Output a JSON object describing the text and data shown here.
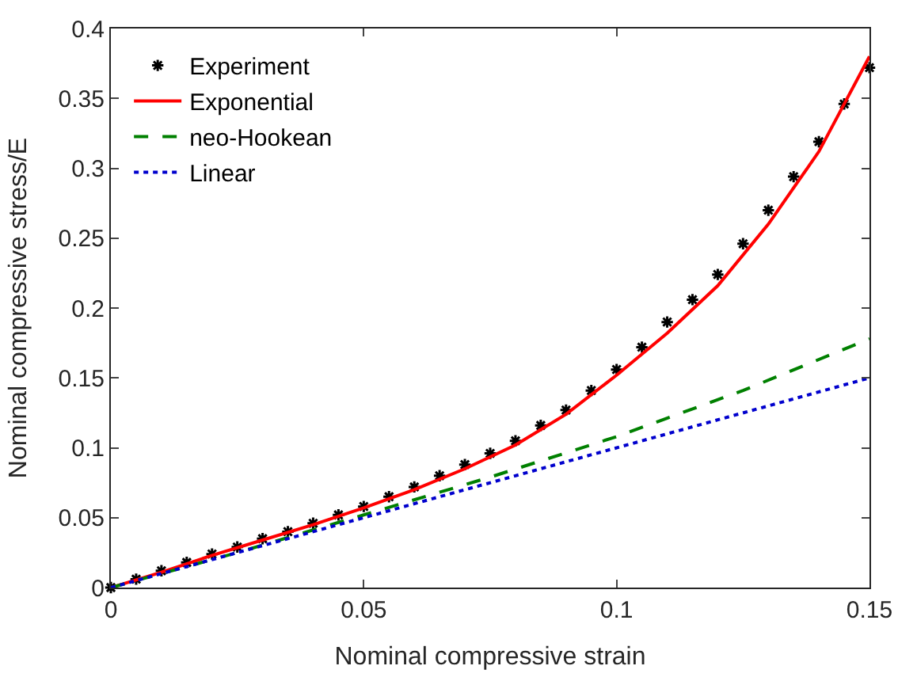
{
  "chart_data": {
    "type": "line",
    "xlabel": "Nominal compressive strain",
    "ylabel": "Nominal compressive stress/E",
    "xlim": [
      0,
      0.15
    ],
    "ylim": [
      0,
      0.4
    ],
    "xticks": [
      0,
      0.05,
      0.1,
      0.15
    ],
    "yticks": [
      0,
      0.05,
      0.1,
      0.15,
      0.2,
      0.25,
      0.3,
      0.35,
      0.4
    ],
    "grid": false,
    "legend": "top left",
    "series": [
      {
        "name": "Experiment",
        "type": "scatter",
        "marker": "cross",
        "color": "#000000",
        "x": [
          0,
          0.005,
          0.01,
          0.015,
          0.02,
          0.025,
          0.03,
          0.035,
          0.04,
          0.045,
          0.05,
          0.055,
          0.06,
          0.065,
          0.07,
          0.075,
          0.08,
          0.085,
          0.09,
          0.095,
          0.1,
          0.105,
          0.11,
          0.115,
          0.12,
          0.125,
          0.13,
          0.135,
          0.14,
          0.145,
          0.15
        ],
        "values": [
          0,
          0.006,
          0.012,
          0.018,
          0.024,
          0.029,
          0.035,
          0.04,
          0.046,
          0.052,
          0.058,
          0.065,
          0.072,
          0.08,
          0.088,
          0.096,
          0.105,
          0.116,
          0.127,
          0.141,
          0.156,
          0.172,
          0.19,
          0.206,
          0.224,
          0.246,
          0.27,
          0.294,
          0.319,
          0.346,
          0.372
        ]
      },
      {
        "name": "Exponential",
        "line_style": "solid",
        "color": "#ff0000",
        "x": [
          0,
          0.01,
          0.02,
          0.03,
          0.04,
          0.05,
          0.06,
          0.07,
          0.08,
          0.09,
          0.1,
          0.11,
          0.12,
          0.13,
          0.14,
          0.15
        ],
        "values": [
          0,
          0.011,
          0.023,
          0.034,
          0.045,
          0.057,
          0.07,
          0.085,
          0.102,
          0.124,
          0.152,
          0.182,
          0.216,
          0.26,
          0.312,
          0.38
        ]
      },
      {
        "name": "neo-Hookean",
        "line_style": "dashed",
        "color": "#008000",
        "x": [
          0,
          0.025,
          0.05,
          0.075,
          0.1,
          0.125,
          0.15
        ],
        "values": [
          0,
          0.025,
          0.052,
          0.079,
          0.108,
          0.141,
          0.178
        ]
      },
      {
        "name": "Linear",
        "line_style": "dotted",
        "color": "#0000cd",
        "x": [
          0,
          0.15
        ],
        "values": [
          0,
          0.15
        ]
      }
    ]
  }
}
